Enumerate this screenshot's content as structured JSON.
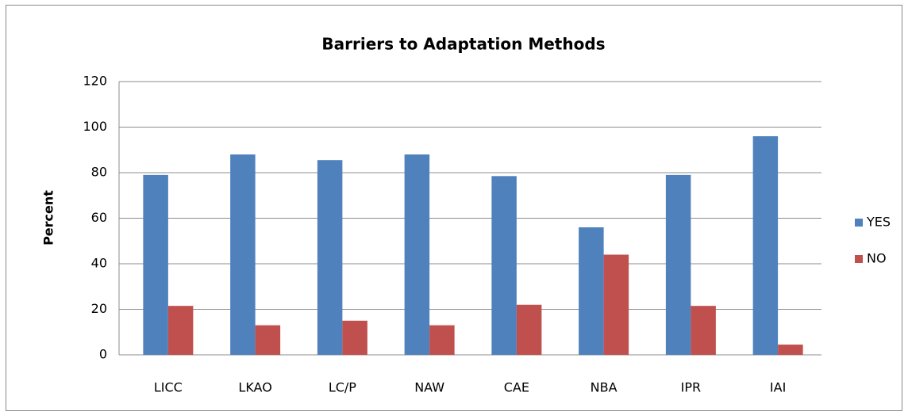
{
  "chart_data": {
    "type": "bar",
    "title": "Barriers to Adaptation Methods",
    "y_label": "Percent",
    "categories": [
      "LICC",
      "LKAO",
      "LC/P",
      "NAW",
      "CAE",
      "NBA",
      "IPR",
      "IAI"
    ],
    "series": [
      {
        "name": "YES",
        "color": "#4f81bd",
        "values": [
          79,
          88,
          85.5,
          88,
          78.5,
          56,
          79,
          96
        ]
      },
      {
        "name": "NO",
        "color": "#c0504d",
        "values": [
          21.5,
          13,
          15,
          13,
          22,
          44,
          21.5,
          4.5
        ]
      }
    ],
    "ylim": [
      0,
      120
    ],
    "yticks": [
      0,
      20,
      40,
      60,
      80,
      100,
      120
    ],
    "grid": true,
    "legend": "right"
  }
}
